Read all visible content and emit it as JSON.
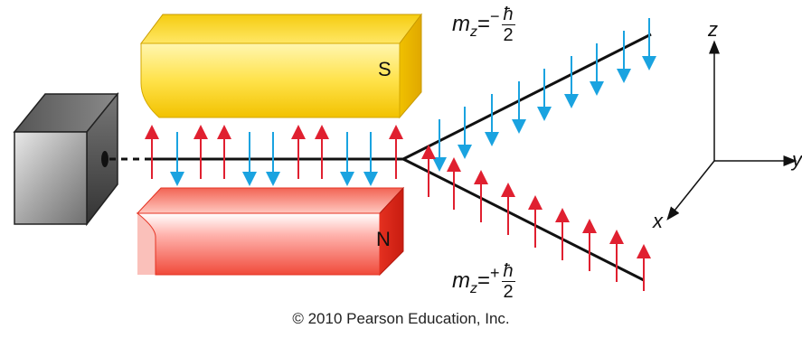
{
  "labels": {
    "south_pole": "S",
    "north_pole": "N",
    "upper_beam": {
      "symbol": "m",
      "subscript": "z",
      "eq": "=",
      "sign": "−",
      "numerator": "ħ",
      "denominator": "2"
    },
    "lower_beam": {
      "symbol": "m",
      "subscript": "z",
      "eq": "=",
      "sign": "+",
      "numerator": "ħ",
      "denominator": "2"
    },
    "axes": {
      "z": "z",
      "y": "y",
      "x": "x"
    }
  },
  "copyright": "© 2010 Pearson Education, Inc.",
  "colors": {
    "north_magnet": "#e8332a",
    "south_magnet": "#f2c500",
    "spin_down_arrow": "#1aa3e0",
    "spin_up_arrow": "#e02030",
    "beam": "#111111",
    "oven": "#8a8a8a"
  }
}
